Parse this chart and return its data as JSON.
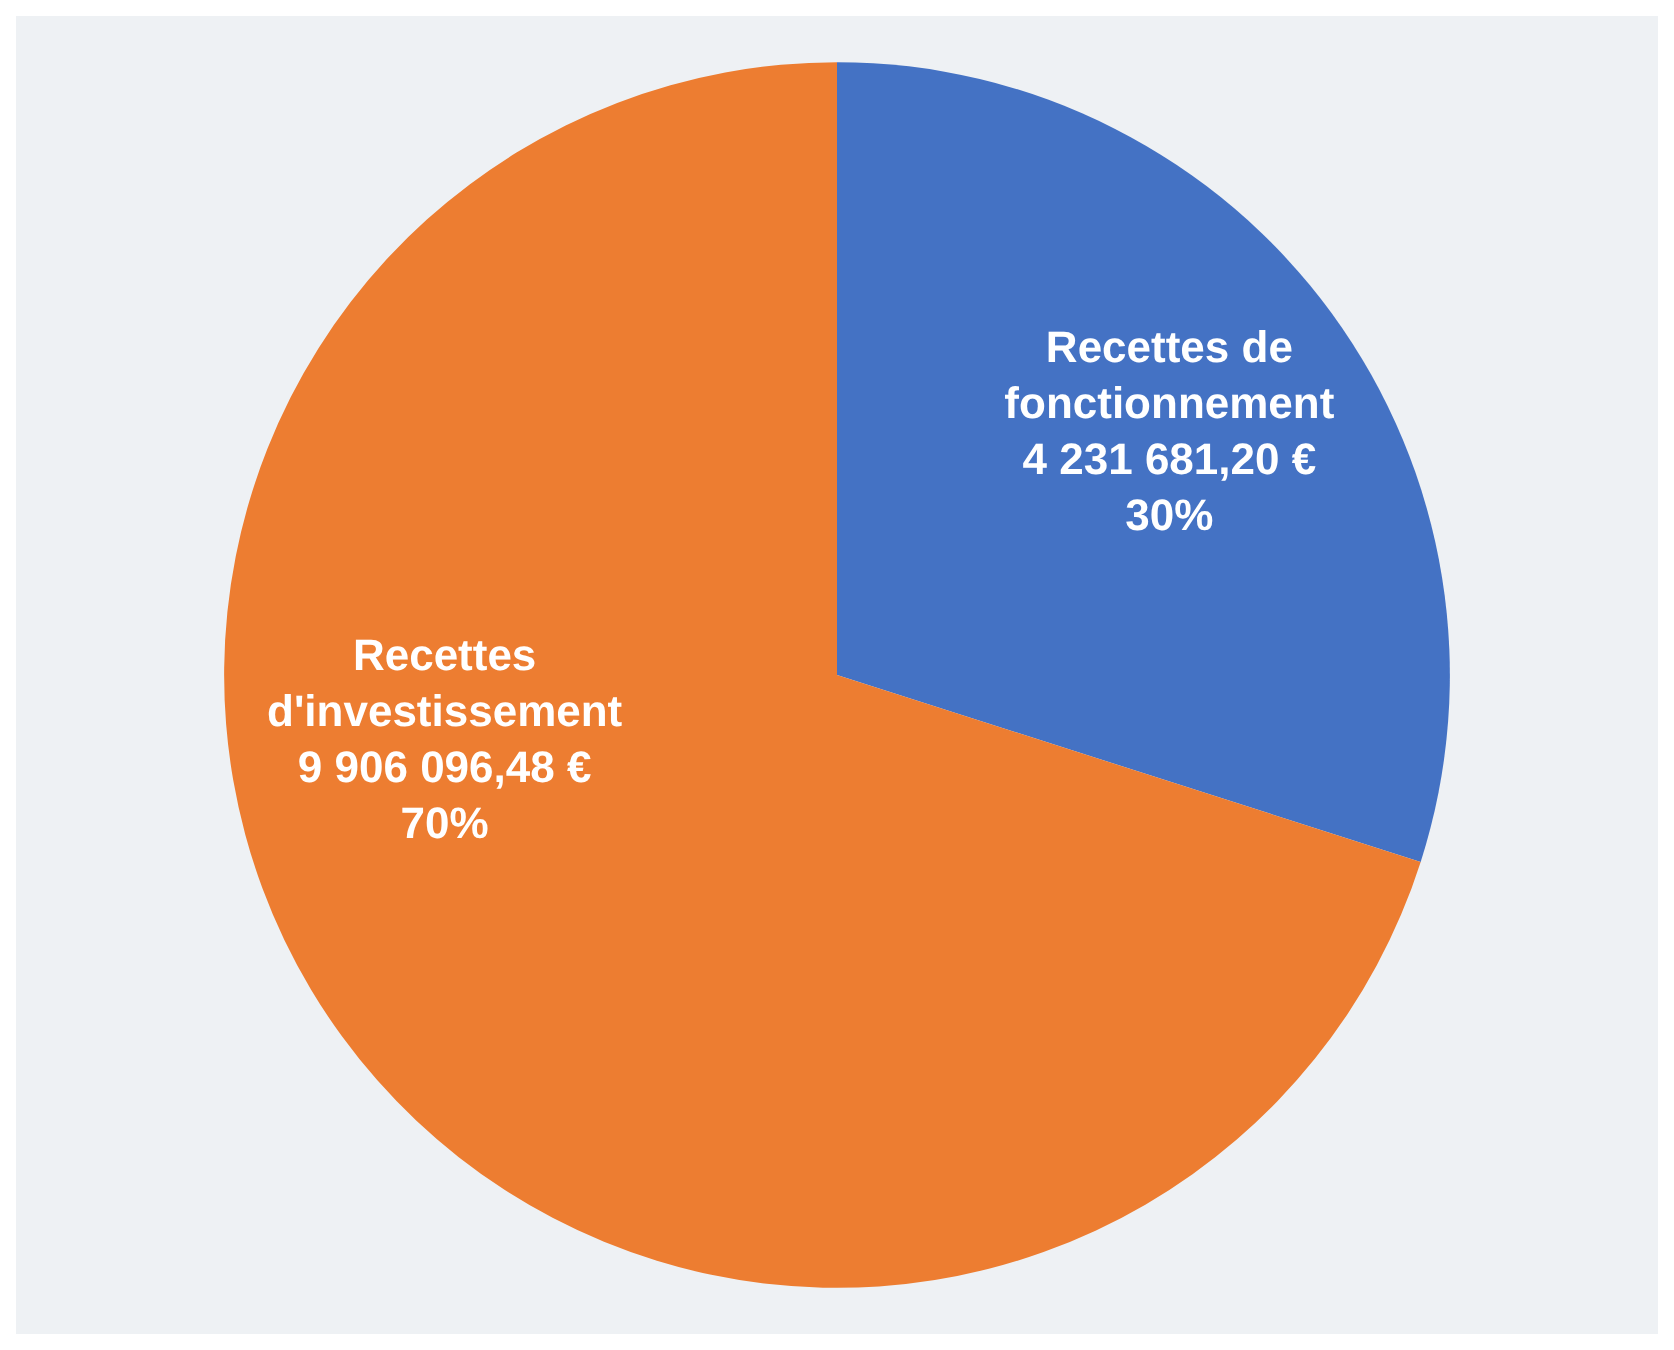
{
  "chart_data": {
    "type": "pie",
    "categories": [
      "Recettes de\nfonctionnement",
      "Recettes\nd'investissement"
    ],
    "values": [
      4231681.2,
      9906096.48
    ],
    "value_labels": [
      "4 231 681,20 €\n30%",
      "9 906 096,48 €\n70%"
    ],
    "colors": [
      "#4472c4",
      "#ed7d31"
    ],
    "legend": false
  }
}
